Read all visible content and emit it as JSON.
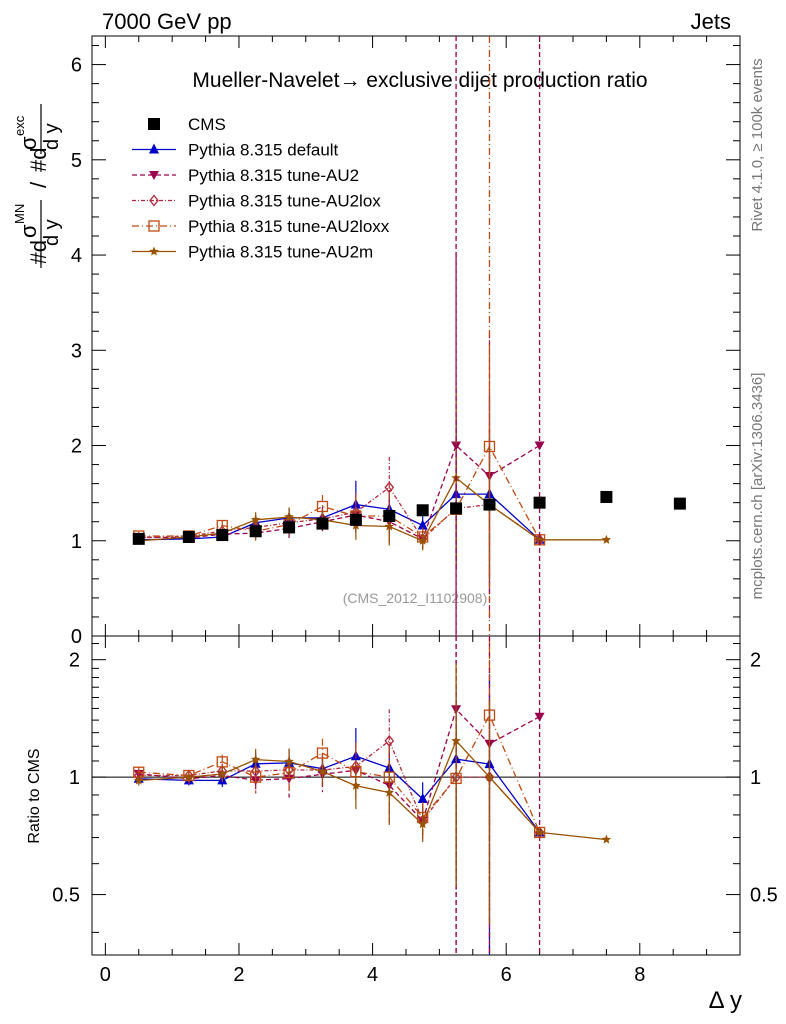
{
  "header": {
    "left": "7000 GeV pp",
    "right": "Jets"
  },
  "chart_data": {
    "type": "line",
    "title": "Mueller-Navelet→ exclusive dijet production ratio",
    "ylabel_parts": {
      "num_prefix": "#d",
      "sigma": "σ",
      "num_sup": "MN",
      "num_den": "d y",
      "slash": "/",
      "den_prefix": "#d",
      "den_sup": "exc",
      "den_den": "d y"
    },
    "ratio_ylabel": "Ratio to CMS",
    "xlabel": "Δ y",
    "watermark": "(CMS_2012_I1102908)",
    "side_text": {
      "rivet": "Rivet 4.1.0, ≥ 100k events",
      "mcplots": "mcplots.cern.ch [arXiv:1306.3436]"
    },
    "xlim": [
      -0.2,
      9.5
    ],
    "ylim": [
      0,
      6.3
    ],
    "ratio_ylim": [
      0.35,
      2.3
    ],
    "x_ticks": [
      "0",
      "2",
      "4",
      "6",
      "8"
    ],
    "y_ticks": [
      "0",
      "1",
      "2",
      "3",
      "4",
      "5",
      "6"
    ],
    "ratio_ticks": [
      "0.5",
      "1",
      "2"
    ],
    "cms": {
      "name": "CMS",
      "color": "#000000",
      "x": [
        0.5,
        1.25,
        1.75,
        2.25,
        2.75,
        3.25,
        3.75,
        4.25,
        4.75,
        5.25,
        5.75,
        6.5,
        7.5,
        8.6
      ],
      "y": [
        1.02,
        1.04,
        1.06,
        1.1,
        1.14,
        1.18,
        1.22,
        1.26,
        1.32,
        1.34,
        1.38,
        1.4,
        1.46,
        1.39
      ]
    },
    "series": [
      {
        "name": "Pythia 8.315 default",
        "color": "#0000cc",
        "dash": "",
        "marker": "triangle-up",
        "x": [
          0.5,
          1.25,
          1.75,
          2.25,
          2.75,
          3.25,
          3.75,
          4.25,
          4.75,
          5.25,
          5.75,
          6.5
        ],
        "y": [
          1.01,
          1.02,
          1.04,
          1.19,
          1.24,
          1.24,
          1.38,
          1.33,
          1.16,
          1.49,
          1.49,
          1.01
        ],
        "err": [
          0.03,
          0.03,
          0.04,
          0.08,
          0.1,
          0.12,
          0.25,
          0.2,
          0.12,
          0.8,
          1.05,
          0.0
        ]
      },
      {
        "name": "Pythia 8.315 tune-AU2",
        "color": "#99004d",
        "dash": "5,3",
        "marker": "triangle-down",
        "x": [
          0.5,
          1.25,
          1.75,
          2.25,
          2.75,
          3.25,
          3.75,
          4.25,
          4.75,
          5.25,
          5.75,
          6.5
        ],
        "y": [
          1.04,
          1.03,
          1.07,
          1.08,
          1.13,
          1.2,
          1.27,
          1.2,
          1.02,
          2.0,
          1.68,
          2.0
        ],
        "err": [
          0.03,
          0.03,
          0.05,
          0.08,
          0.12,
          0.12,
          0.2,
          0.25,
          0.1,
          2.0,
          1.5,
          0.0
        ]
      },
      {
        "name": "Pythia 8.315 tune-AU2lox",
        "color": "#b02a3a",
        "dash": "4,2,1,2",
        "marker": "diamond",
        "x": [
          0.5,
          1.25,
          1.75,
          2.25,
          2.75,
          3.25,
          3.75,
          4.25,
          4.75,
          5.25,
          5.75,
          6.5
        ],
        "y": [
          1.03,
          1.05,
          1.1,
          1.14,
          1.19,
          1.23,
          1.3,
          1.56,
          1.02,
          1.34,
          1.38,
          1.01
        ],
        "err": [
          0.03,
          0.03,
          0.05,
          0.08,
          0.1,
          0.12,
          0.2,
          0.32,
          0.1,
          0.55,
          0.8,
          0.0
        ]
      },
      {
        "name": "Pythia 8.315 tune-AU2loxx",
        "color": "#c04a10",
        "dash": "7,3,1,3",
        "marker": "open-square",
        "x": [
          0.5,
          1.25,
          1.75,
          2.25,
          2.75,
          3.25,
          3.75,
          4.25,
          4.75,
          5.25,
          5.75,
          6.5
        ],
        "y": [
          1.05,
          1.05,
          1.16,
          1.1,
          1.17,
          1.36,
          1.26,
          1.26,
          1.04,
          1.33,
          1.99,
          1.01
        ],
        "err": [
          0.03,
          0.03,
          0.05,
          0.1,
          0.12,
          0.12,
          0.2,
          0.25,
          0.1,
          0.6,
          1.0,
          0.0
        ]
      },
      {
        "name": "Pythia 8.315 tune-AU2m",
        "color": "#995200",
        "dash": "",
        "marker": "star",
        "x": [
          0.5,
          1.25,
          1.75,
          2.25,
          2.75,
          3.25,
          3.75,
          4.25,
          4.75,
          5.25,
          5.75,
          6.5,
          7.5
        ],
        "y": [
          1.0,
          1.04,
          1.08,
          1.22,
          1.25,
          1.22,
          1.16,
          1.15,
          1.0,
          1.66,
          1.38,
          1.01,
          1.01
        ],
        "err": [
          0.03,
          0.03,
          0.05,
          0.08,
          0.1,
          0.1,
          0.15,
          0.2,
          0.1,
          0.96,
          0.8,
          0.0,
          0.0
        ]
      }
    ]
  }
}
